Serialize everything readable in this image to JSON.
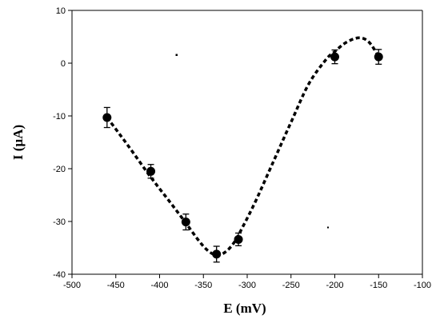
{
  "chart_data": {
    "type": "scatter",
    "xlabel": "E (mV)",
    "ylabel": "I (µA)",
    "xlim": [
      -500,
      -100
    ],
    "ylim": [
      -40,
      10
    ],
    "x_ticks": [
      -500,
      -450,
      -400,
      -350,
      -300,
      -250,
      -200,
      -150,
      -100
    ],
    "y_ticks": [
      10,
      0,
      -10,
      -20,
      -30,
      -40
    ],
    "x_tick_labels": [
      "-500",
      "-450",
      "-400",
      "-350",
      "-300",
      "-250",
      "-200",
      "-150",
      "-100"
    ],
    "y_tick_labels": [
      "10",
      "0",
      "-10",
      "-20",
      "-30",
      "-40"
    ],
    "grid": false,
    "legend": "none",
    "series": [
      {
        "style": "markers with error bars",
        "x": [
          -460,
          -410,
          -370,
          -335,
          -310,
          -200,
          -150
        ],
        "y": [
          -10.3,
          -20.5,
          -30.1,
          -36.2,
          -33.4,
          1.2,
          1.2
        ],
        "error": [
          1.9,
          1.3,
          1.5,
          1.5,
          1.2,
          1.3,
          1.4
        ]
      },
      {
        "style": "dashed fit curve",
        "x": [
          -460,
          -445,
          -430,
          -415,
          -400,
          -385,
          -370,
          -355,
          -345,
          -335,
          -325,
          -315,
          -305,
          -290,
          -270,
          -250,
          -230,
          -210,
          -200,
          -190,
          -180,
          -172,
          -165,
          -158,
          -150
        ],
        "y": [
          -10.3,
          -13.6,
          -17.0,
          -20.5,
          -23.8,
          -27.0,
          -30.3,
          -33.7,
          -35.5,
          -36.4,
          -35.8,
          -34.0,
          -31.0,
          -26.0,
          -18.6,
          -11.2,
          -4.0,
          0.7,
          2.2,
          3.6,
          4.5,
          4.8,
          4.5,
          3.4,
          1.2
        ]
      }
    ]
  }
}
